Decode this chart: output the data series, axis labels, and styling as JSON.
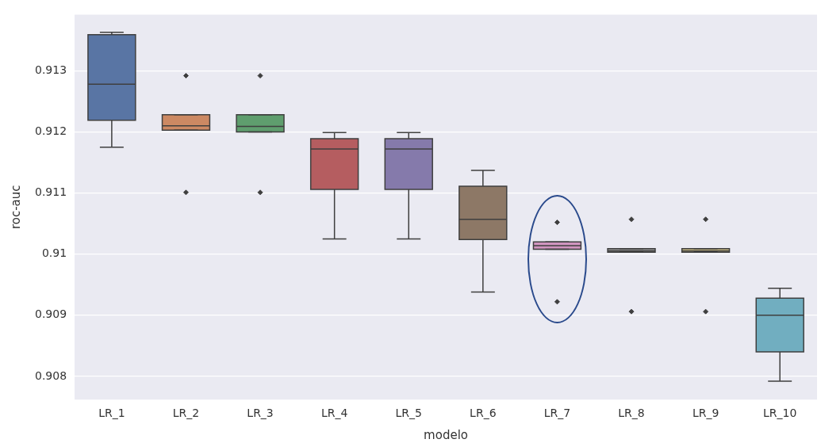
{
  "chart_data": {
    "type": "box",
    "xlabel": "modelo",
    "ylabel": "roc-auc",
    "categories": [
      "LR_1",
      "LR_2",
      "LR_3",
      "LR_4",
      "LR_5",
      "LR_6",
      "LR_7",
      "LR_8",
      "LR_9",
      "LR_10"
    ],
    "colors": [
      "#5975a4",
      "#cc8963",
      "#5f9e6e",
      "#b55d60",
      "#857aab",
      "#8d7866",
      "#d095bf",
      "#8c8c8c",
      "#c1b37f",
      "#71aec0"
    ],
    "boxes": [
      {
        "low": 0.91175,
        "q1": 0.91219,
        "median": 0.91278,
        "q3": 0.91359,
        "high": 0.91363
      },
      {
        "low": 0.91203,
        "q1": 0.91203,
        "median": 0.9121,
        "q3": 0.91228,
        "high": 0.91228,
        "outliers": [
          0.91292,
          0.91101
        ]
      },
      {
        "low": 0.912,
        "q1": 0.912,
        "median": 0.91209,
        "q3": 0.91228,
        "high": 0.91228,
        "outliers": [
          0.91292,
          0.91101
        ]
      },
      {
        "low": 0.91025,
        "q1": 0.91106,
        "median": 0.91172,
        "q3": 0.91189,
        "high": 0.91199
      },
      {
        "low": 0.91025,
        "q1": 0.91106,
        "median": 0.91172,
        "q3": 0.91189,
        "high": 0.91199
      },
      {
        "low": 0.90938,
        "q1": 0.91024,
        "median": 0.91057,
        "q3": 0.91111,
        "high": 0.91137
      },
      {
        "low": 0.91008,
        "q1": 0.91008,
        "median": 0.91014,
        "q3": 0.9102,
        "high": 0.9102,
        "outliers": [
          0.91052,
          0.90922
        ]
      },
      {
        "low": 0.91003,
        "q1": 0.91003,
        "median": 0.91005,
        "q3": 0.91009,
        "high": 0.91009,
        "outliers": [
          0.91057,
          0.90906
        ]
      },
      {
        "low": 0.91003,
        "q1": 0.91003,
        "median": 0.91005,
        "q3": 0.91009,
        "high": 0.91009,
        "outliers": [
          0.91057,
          0.90906
        ]
      },
      {
        "low": 0.90792,
        "q1": 0.9084,
        "median": 0.909,
        "q3": 0.90928,
        "high": 0.90944
      }
    ],
    "ylim": [
      0.90762,
      0.91392
    ],
    "yticks": [
      0.908,
      0.909,
      0.91,
      0.911,
      0.912,
      0.913
    ],
    "grid": "y",
    "legend": false
  }
}
